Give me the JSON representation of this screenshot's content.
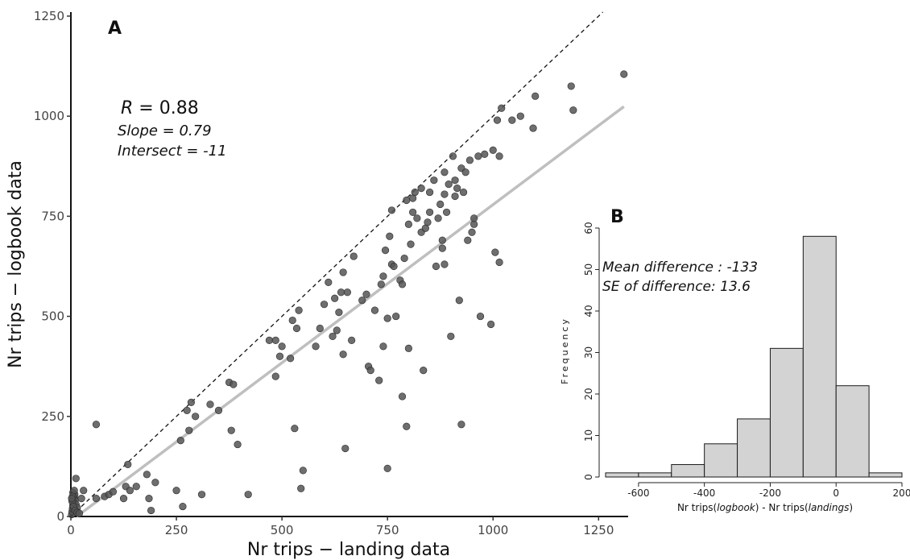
{
  "chart_data": [
    {
      "type": "scatter",
      "panel": "A",
      "xlabel": "Nr trips − landing data",
      "ylabel": "Nr trips − logbook data",
      "xlim": [
        0,
        1320
      ],
      "ylim": [
        0,
        1260
      ],
      "xticks": [
        0,
        250,
        500,
        750,
        1000,
        1250
      ],
      "yticks": [
        0,
        250,
        500,
        750,
        1000,
        1250
      ],
      "annotations": {
        "r_symbol": "R",
        "r_value": " = 0.88",
        "slope": "Slope = 0.79",
        "intersect": "Intersect = -11"
      },
      "identity_line": {
        "slope": 1,
        "intercept": 0,
        "style": "dashed",
        "color": "#111111"
      },
      "fit_line": {
        "slope": 0.79,
        "intercept": -11,
        "color": "#bfbfbf",
        "x_range": [
          0,
          1310
        ]
      },
      "points_color": "#555555",
      "points": [
        [
          2,
          5
        ],
        [
          3,
          12
        ],
        [
          4,
          20
        ],
        [
          5,
          28
        ],
        [
          6,
          35
        ],
        [
          7,
          42
        ],
        [
          8,
          48
        ],
        [
          9,
          55
        ],
        [
          10,
          40
        ],
        [
          12,
          30
        ],
        [
          15,
          22
        ],
        [
          5,
          60
        ],
        [
          8,
          65
        ],
        [
          4,
          50
        ],
        [
          3,
          38
        ],
        [
          2,
          45
        ],
        [
          6,
          25
        ],
        [
          10,
          15
        ],
        [
          15,
          10
        ],
        [
          20,
          8
        ],
        [
          12,
          95
        ],
        [
          25,
          45
        ],
        [
          30,
          65
        ],
        [
          60,
          45
        ],
        [
          60,
          230
        ],
        [
          80,
          50
        ],
        [
          90,
          55
        ],
        [
          100,
          62
        ],
        [
          125,
          45
        ],
        [
          130,
          75
        ],
        [
          135,
          130
        ],
        [
          140,
          65
        ],
        [
          155,
          75
        ],
        [
          180,
          105
        ],
        [
          185,
          45
        ],
        [
          190,
          15
        ],
        [
          200,
          85
        ],
        [
          250,
          65
        ],
        [
          260,
          190
        ],
        [
          265,
          25
        ],
        [
          275,
          265
        ],
        [
          280,
          215
        ],
        [
          285,
          285
        ],
        [
          295,
          250
        ],
        [
          310,
          55
        ],
        [
          330,
          280
        ],
        [
          350,
          265
        ],
        [
          375,
          335
        ],
        [
          380,
          215
        ],
        [
          385,
          330
        ],
        [
          395,
          180
        ],
        [
          420,
          55
        ],
        [
          470,
          440
        ],
        [
          485,
          440
        ],
        [
          485,
          350
        ],
        [
          495,
          400
        ],
        [
          500,
          425
        ],
        [
          520,
          395
        ],
        [
          525,
          490
        ],
        [
          530,
          220
        ],
        [
          535,
          470
        ],
        [
          540,
          515
        ],
        [
          545,
          70
        ],
        [
          550,
          115
        ],
        [
          580,
          425
        ],
        [
          590,
          470
        ],
        [
          600,
          530
        ],
        [
          610,
          585
        ],
        [
          620,
          450
        ],
        [
          625,
          545
        ],
        [
          630,
          465
        ],
        [
          635,
          510
        ],
        [
          640,
          560
        ],
        [
          645,
          405
        ],
        [
          645,
          610
        ],
        [
          650,
          170
        ],
        [
          655,
          560
        ],
        [
          665,
          440
        ],
        [
          670,
          650
        ],
        [
          690,
          540
        ],
        [
          700,
          555
        ],
        [
          705,
          375
        ],
        [
          710,
          365
        ],
        [
          720,
          515
        ],
        [
          730,
          340
        ],
        [
          735,
          580
        ],
        [
          740,
          425
        ],
        [
          740,
          600
        ],
        [
          745,
          665
        ],
        [
          750,
          495
        ],
        [
          750,
          120
        ],
        [
          755,
          700
        ],
        [
          760,
          630
        ],
        [
          760,
          765
        ],
        [
          765,
          625
        ],
        [
          770,
          500
        ],
        [
          780,
          590
        ],
        [
          785,
          300
        ],
        [
          785,
          580
        ],
        [
          790,
          645
        ],
        [
          795,
          790
        ],
        [
          795,
          225
        ],
        [
          800,
          420
        ],
        [
          800,
          730
        ],
        [
          805,
          680
        ],
        [
          810,
          760
        ],
        [
          810,
          795
        ],
        [
          815,
          810
        ],
        [
          820,
          745
        ],
        [
          830,
          710
        ],
        [
          830,
          820
        ],
        [
          835,
          365
        ],
        [
          840,
          720
        ],
        [
          845,
          735
        ],
        [
          850,
          760
        ],
        [
          850,
          810
        ],
        [
          860,
          840
        ],
        [
          865,
          625
        ],
        [
          870,
          745
        ],
        [
          875,
          780
        ],
        [
          880,
          670
        ],
        [
          880,
          690
        ],
        [
          885,
          630
        ],
        [
          885,
          805
        ],
        [
          885,
          860
        ],
        [
          890,
          760
        ],
        [
          895,
          830
        ],
        [
          900,
          450
        ],
        [
          905,
          900
        ],
        [
          910,
          840
        ],
        [
          910,
          800
        ],
        [
          915,
          820
        ],
        [
          920,
          540
        ],
        [
          925,
          870
        ],
        [
          925,
          230
        ],
        [
          930,
          810
        ],
        [
          935,
          860
        ],
        [
          940,
          690
        ],
        [
          945,
          890
        ],
        [
          950,
          710
        ],
        [
          955,
          730
        ],
        [
          955,
          745
        ],
        [
          965,
          900
        ],
        [
          970,
          500
        ],
        [
          980,
          905
        ],
        [
          995,
          480
        ],
        [
          1000,
          915
        ],
        [
          1005,
          660
        ],
        [
          1010,
          990
        ],
        [
          1015,
          635
        ],
        [
          1015,
          900
        ],
        [
          1020,
          1020
        ],
        [
          1045,
          990
        ],
        [
          1065,
          1000
        ],
        [
          1095,
          970
        ],
        [
          1100,
          1050
        ],
        [
          1185,
          1075
        ],
        [
          1190,
          1015
        ],
        [
          1310,
          1105
        ]
      ]
    },
    {
      "type": "bar",
      "subtype": "histogram",
      "panel": "B",
      "ylabel": "Frequency",
      "xlabel_parts": [
        "Nr trips(",
        "logbook",
        ") - Nr trips(",
        "landings",
        ")"
      ],
      "bin_edges": [
        -700,
        -600,
        -500,
        -400,
        -300,
        -200,
        -100,
        0,
        100,
        200
      ],
      "values": [
        1,
        1,
        3,
        8,
        14,
        31,
        58,
        22,
        1
      ],
      "xticks": [
        -600,
        -400,
        -200,
        0,
        200
      ],
      "yticks": [
        0,
        10,
        20,
        30,
        40,
        50,
        60
      ],
      "xlim": [
        -700,
        200
      ],
      "ylim": [
        0,
        60
      ],
      "bar_color": "#d3d3d3",
      "annotations": {
        "mean": "Mean difference : -133",
        "se": "SE of difference: 13.6"
      }
    }
  ],
  "panel_labels": {
    "a": "A",
    "b": "B"
  }
}
